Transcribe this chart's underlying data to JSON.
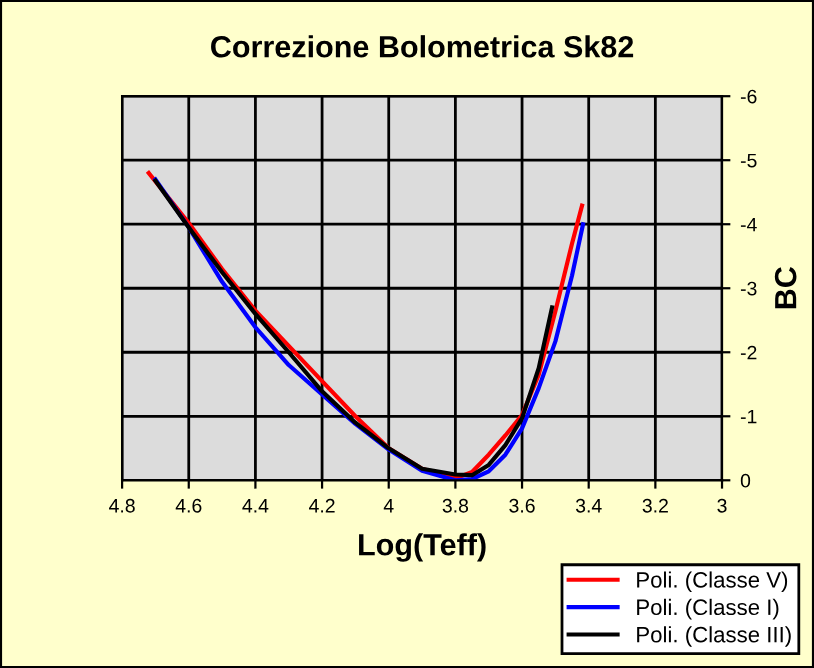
{
  "chart_data": {
    "type": "line",
    "title": "Correzione Bolometrica Sk82",
    "xlabel": "Log(Teff)",
    "ylabel": "BC",
    "xlim": [
      4.8,
      3
    ],
    "xticks": [
      4.8,
      4.6,
      4.4,
      4.2,
      4,
      3.8,
      3.6,
      3.4,
      3.2,
      3
    ],
    "ylim": [
      0,
      -6
    ],
    "yticks": [
      {
        "value": 0,
        "label": "0"
      },
      {
        "value": -1,
        "label": "-1"
      },
      {
        "value": -2,
        "label": "-2"
      },
      {
        "value": -3,
        "label": "-3"
      },
      {
        "value": -4,
        "label": "-4"
      },
      {
        "value": -5,
        "label": "-5"
      },
      {
        "value": -6,
        "label": "-6"
      }
    ],
    "grid": true,
    "legend": "bottom right",
    "marker": "none",
    "line_style": "solid",
    "series": [
      {
        "name": "Poli. (Classe V)",
        "color": "#ff0000",
        "x": [
          4.72,
          4.6,
          4.5,
          4.4,
          4.3,
          4.2,
          4.1,
          4.0,
          3.9,
          3.8,
          3.75,
          3.7,
          3.65,
          3.6,
          3.55,
          3.5,
          3.45,
          3.42
        ],
        "values": [
          -4.8,
          -4.02,
          -3.3,
          -2.65,
          -2.1,
          -1.55,
          -1.0,
          -0.5,
          -0.18,
          -0.03,
          -0.13,
          -0.4,
          -0.7,
          -1.02,
          -1.65,
          -2.64,
          -3.7,
          -4.29
        ]
      },
      {
        "name": "Poli. (Classe I)",
        "color": "#0000ff",
        "x": [
          4.7,
          4.6,
          4.5,
          4.4,
          4.3,
          4.2,
          4.1,
          4.0,
          3.9,
          3.8,
          3.75,
          3.7,
          3.65,
          3.6,
          3.55,
          3.5,
          3.45,
          3.417
        ],
        "values": [
          -4.7,
          -3.95,
          -3.1,
          -2.39,
          -1.8,
          -1.34,
          -0.88,
          -0.48,
          -0.15,
          0.0,
          -0.02,
          -0.14,
          -0.4,
          -0.81,
          -1.44,
          -2.17,
          -3.2,
          -4.0
        ]
      },
      {
        "name": "Poli. (Classe III)",
        "color": "#000000",
        "x": [
          4.7,
          4.6,
          4.5,
          4.4,
          4.3,
          4.2,
          4.1,
          4.0,
          3.9,
          3.8,
          3.75,
          3.7,
          3.65,
          3.6,
          3.55,
          3.51
        ],
        "values": [
          -4.68,
          -3.95,
          -3.25,
          -2.6,
          -2.0,
          -1.39,
          -0.9,
          -0.5,
          -0.18,
          -0.09,
          -0.08,
          -0.24,
          -0.55,
          -0.97,
          -1.75,
          -2.7
        ]
      }
    ]
  }
}
